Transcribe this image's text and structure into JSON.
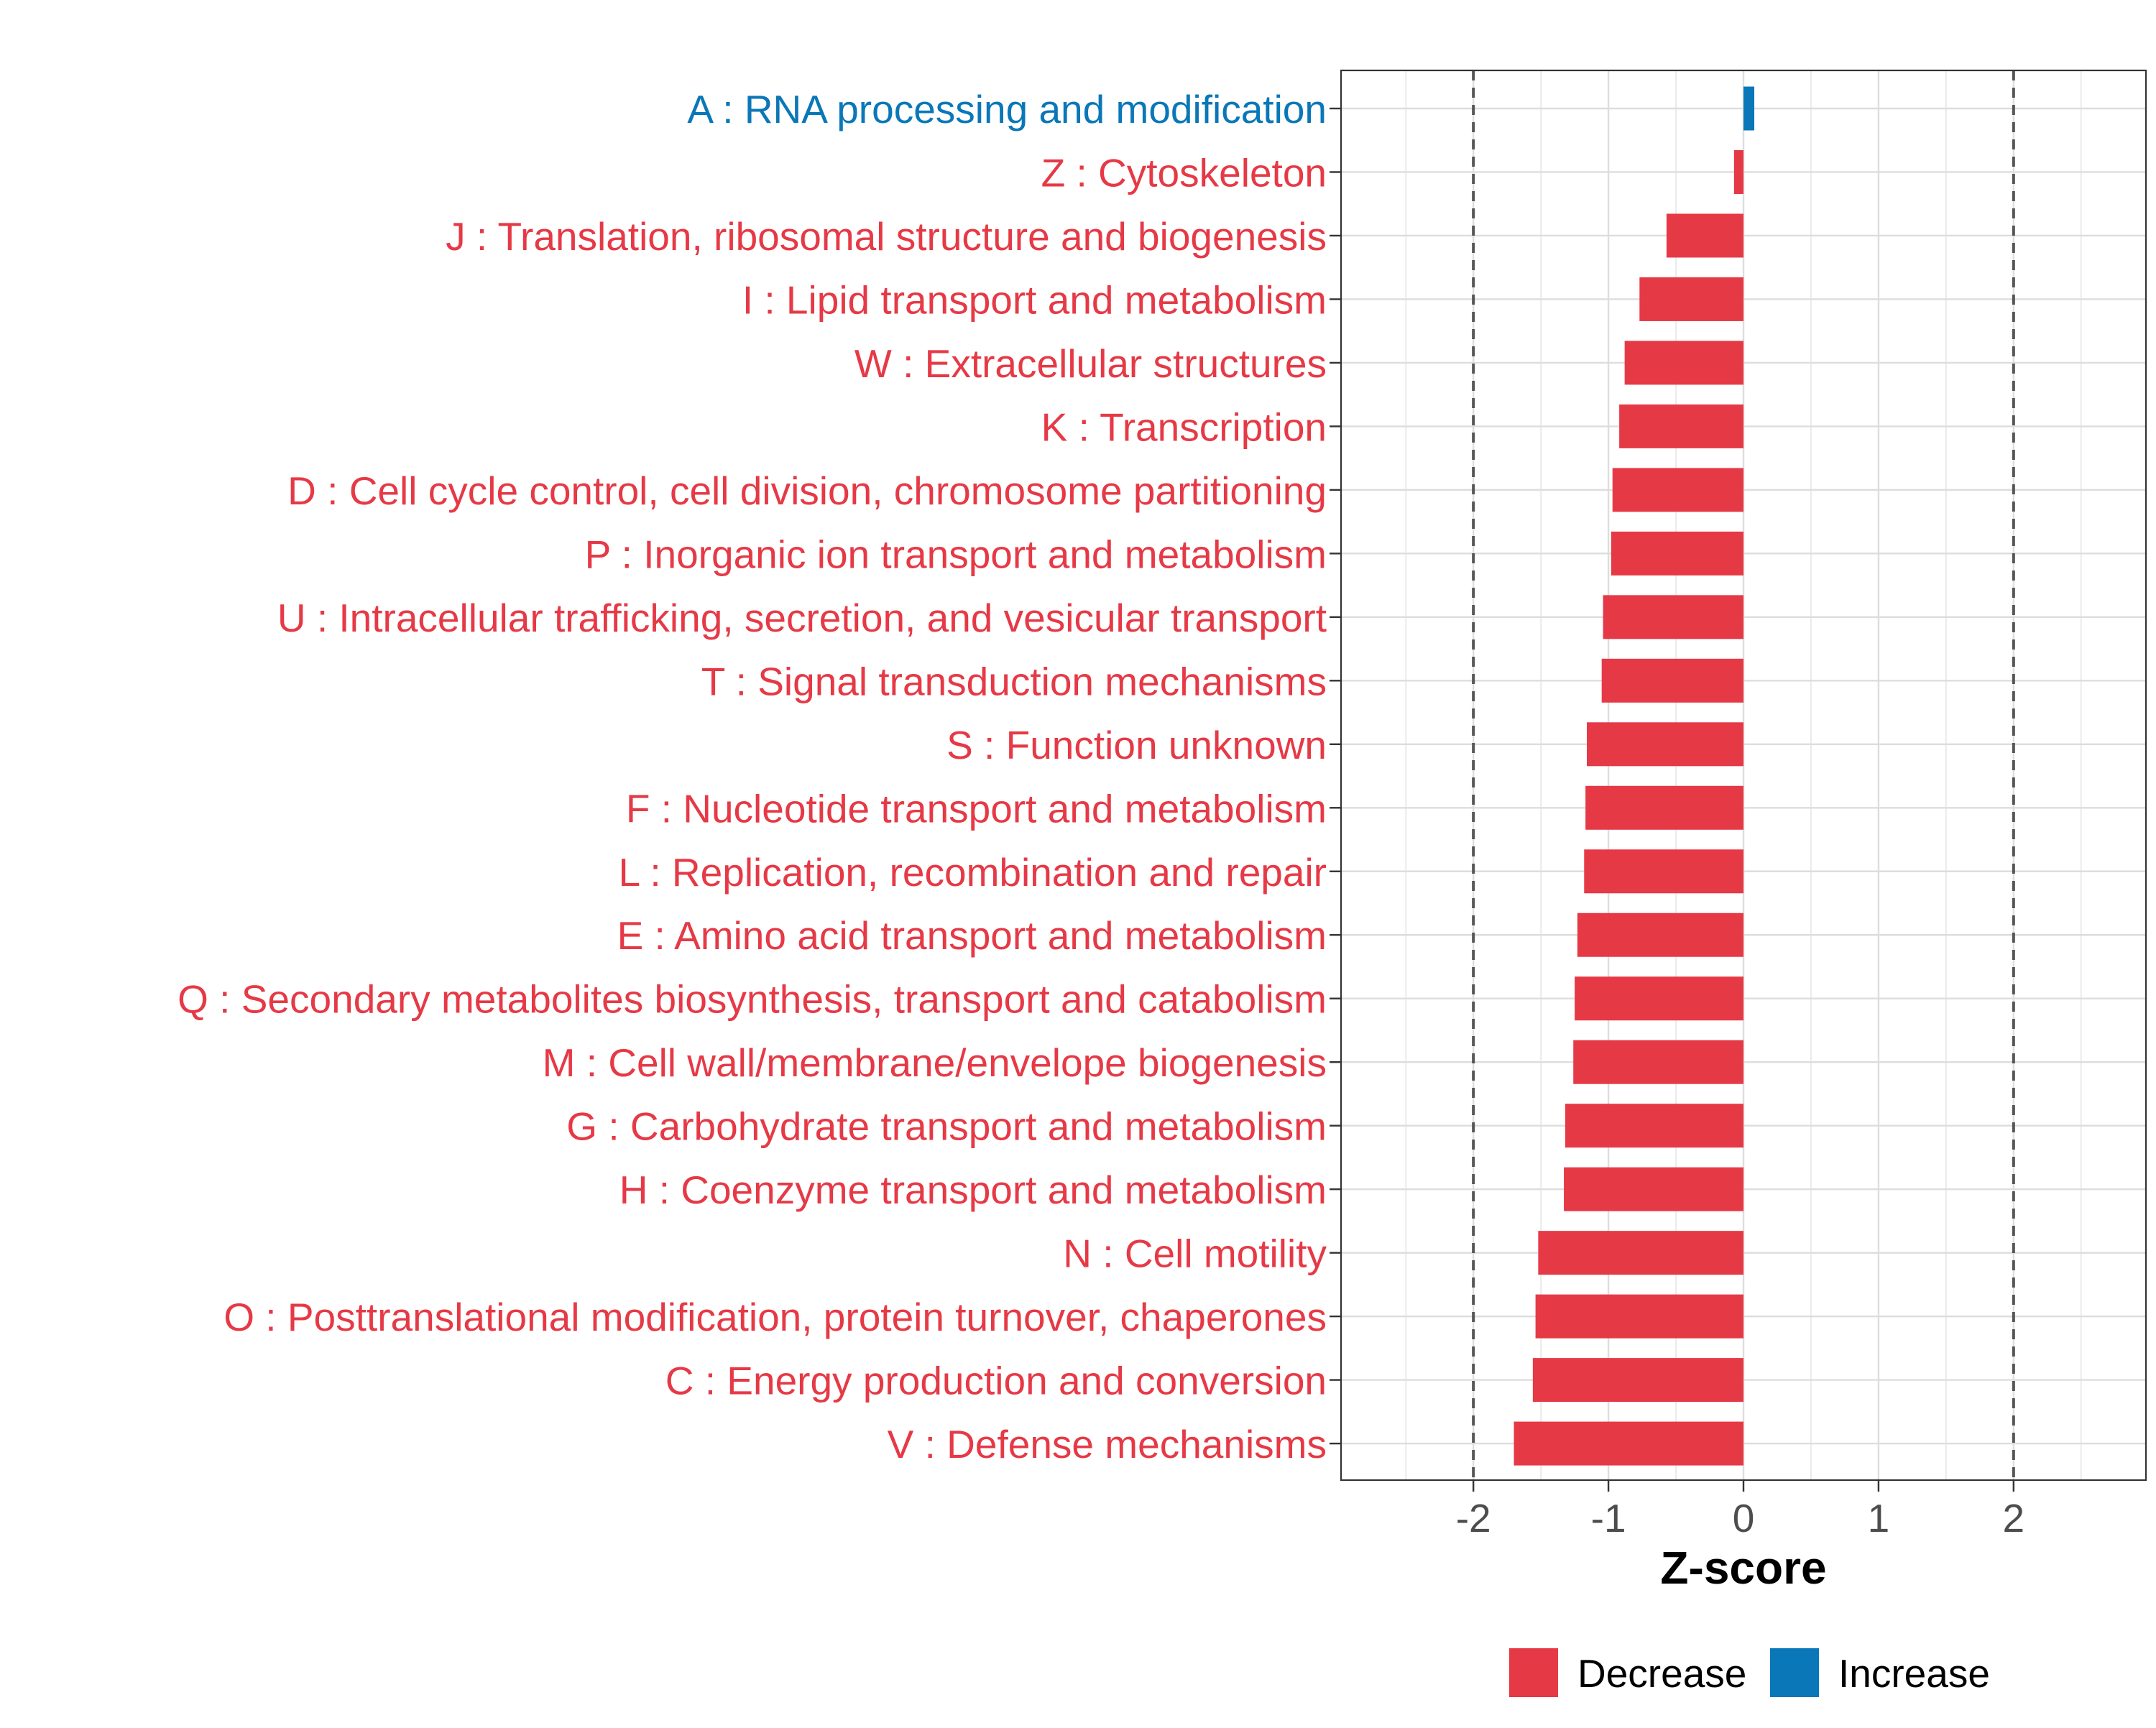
{
  "colors": {
    "decrease": "#E63946",
    "increase": "#0A77B8",
    "grid": "#DDDDDD",
    "axis": "#333333",
    "reference_line": "#555555"
  },
  "chart_data": {
    "type": "bar",
    "orientation": "horizontal",
    "title": "",
    "xlabel": "Z-score",
    "ylabel": "",
    "xlim": [
      -2.98,
      2.98
    ],
    "xticks": [
      -2,
      -1,
      0,
      1,
      2
    ],
    "reference_lines": [
      -2,
      2
    ],
    "grid": true,
    "legend_position": "bottom",
    "legend": [
      {
        "name": "Decrease",
        "color": "#E63946"
      },
      {
        "name": "Increase",
        "color": "#0A77B8"
      }
    ],
    "categories": [
      "A : RNA processing and modification",
      "Z : Cytoskeleton",
      "J : Translation, ribosomal structure and biogenesis",
      "I : Lipid transport and metabolism",
      "W : Extracellular structures",
      "K : Transcription",
      "D : Cell cycle control, cell division, chromosome partitioning",
      "P : Inorganic ion transport and metabolism",
      "U : Intracellular trafficking, secretion, and vesicular transport",
      "T : Signal transduction mechanisms",
      "S : Function unknown",
      "F : Nucleotide transport and metabolism",
      "L : Replication, recombination and repair",
      "E : Amino acid transport and metabolism",
      "Q : Secondary metabolites biosynthesis, transport and catabolism",
      "M : Cell wall/membrane/envelope biogenesis",
      "G : Carbohydrate transport and metabolism",
      "H : Coenzyme transport and metabolism",
      "N : Cell motility",
      "O : Posttranslational modification, protein turnover, chaperones",
      "C : Energy production and conversion",
      "V : Defense mechanisms"
    ],
    "values": [
      0.08,
      -0.07,
      -0.57,
      -0.77,
      -0.88,
      -0.92,
      -0.97,
      -0.98,
      -1.04,
      -1.05,
      -1.16,
      -1.17,
      -1.18,
      -1.23,
      -1.25,
      -1.26,
      -1.32,
      -1.33,
      -1.52,
      -1.54,
      -1.56,
      -1.7
    ],
    "groups": [
      "Increase",
      "Decrease",
      "Decrease",
      "Decrease",
      "Decrease",
      "Decrease",
      "Decrease",
      "Decrease",
      "Decrease",
      "Decrease",
      "Decrease",
      "Decrease",
      "Decrease",
      "Decrease",
      "Decrease",
      "Decrease",
      "Decrease",
      "Decrease",
      "Decrease",
      "Decrease",
      "Decrease",
      "Decrease"
    ]
  }
}
